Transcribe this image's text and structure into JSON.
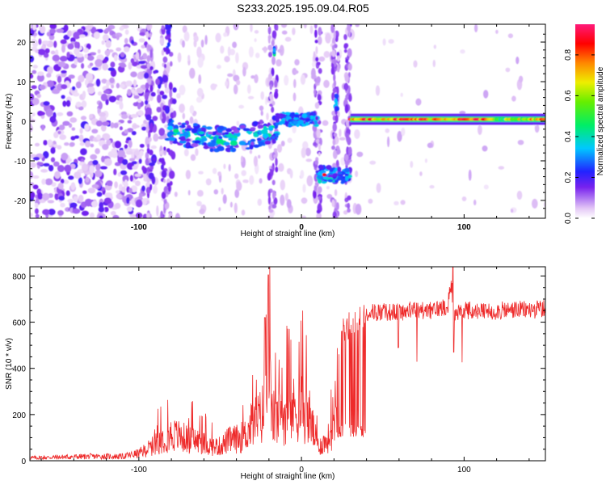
{
  "title": "S233.2025.195.09.04.R05",
  "chart_data": [
    {
      "type": "heatmap",
      "xlabel": "Height of straight line (km)",
      "ylabel": "Frequency (Hz)",
      "xlim": [
        -167,
        150
      ],
      "ylim": [
        -24.5,
        24.5
      ],
      "xticks": [
        -100,
        0,
        100
      ],
      "yticks": [
        -20,
        -10,
        0,
        10,
        20
      ],
      "colorbar": {
        "label": "Normalized spectral amplitude",
        "range": [
          0.0,
          0.95
        ],
        "ticks": [
          0.0,
          0.2,
          0.4,
          0.6,
          0.8
        ]
      },
      "features": [
        {
          "x_range": [
            -167,
            -95
          ],
          "description": "scattered low-amplitude speckle across all frequencies",
          "amplitude": 0.08
        },
        {
          "x_range": [
            -85,
            -80
          ],
          "freq": 20,
          "amplitude": 0.15
        },
        {
          "x_range": [
            -18,
            -16
          ],
          "freq": 17.5,
          "amplitude": 0.3
        },
        {
          "x_range": [
            -82,
            -15
          ],
          "freq": -3,
          "amplitude": 0.25
        },
        {
          "x_range": [
            -15,
            10
          ],
          "freq": 0.5,
          "amplitude": 0.3
        },
        {
          "x_range": [
            10,
            30
          ],
          "freq": -13.5,
          "amplitude": 0.35
        },
        {
          "x_range": [
            20,
            23
          ],
          "freq": 4.5,
          "amplitude": 0.25
        },
        {
          "x_range": [
            30,
            150
          ],
          "freq": 0.5,
          "amplitude": 0.85
        }
      ]
    },
    {
      "type": "line",
      "xlabel": "Height of straight line (km)",
      "ylabel": "SNR (10 * v/v)",
      "xlim": [
        -167,
        150
      ],
      "ylim": [
        0,
        840
      ],
      "xticks": [
        -100,
        0,
        100
      ],
      "yticks": [
        0,
        200,
        400,
        600,
        800
      ],
      "series": [
        {
          "color": "#ee2a2a",
          "x": [
            -167,
            -150,
            -130,
            -110,
            -100,
            -90,
            -85,
            -80,
            -75,
            -70,
            -65,
            -60,
            -55,
            -50,
            -45,
            -40,
            -35,
            -30,
            -25,
            -22,
            -20,
            -18,
            -15,
            -10,
            -5,
            0,
            5,
            10,
            15,
            18,
            20,
            22,
            25,
            30,
            35,
            40,
            50,
            60,
            70,
            80,
            90,
            92,
            94,
            100,
            110,
            120,
            130,
            140,
            150
          ],
          "y": [
            20,
            25,
            30,
            30,
            50,
            110,
            160,
            180,
            170,
            150,
            140,
            120,
            100,
            100,
            140,
            150,
            170,
            260,
            300,
            380,
            560,
            300,
            280,
            330,
            350,
            380,
            300,
            100,
            130,
            180,
            330,
            500,
            600,
            620,
            640,
            650,
            650,
            650,
            660,
            655,
            680,
            780,
            640,
            660,
            650,
            655,
            660,
            660,
            665
          ]
        }
      ]
    }
  ]
}
